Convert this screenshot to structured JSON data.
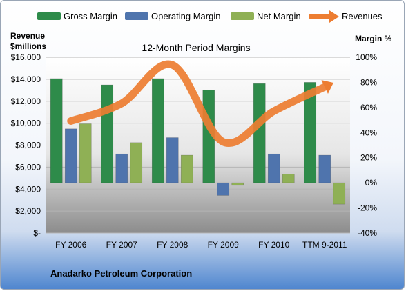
{
  "chart_data": {
    "type": "bar",
    "title": "12-Month Period Margins",
    "categories": [
      "FY 2006",
      "FY 2007",
      "FY 2008",
      "FY 2009",
      "FY 2010",
      "TTM 9-2011"
    ],
    "series": [
      {
        "name": "Gross Margin",
        "axis": "right",
        "unit": "%",
        "color": "#2e8b4a",
        "values": [
          83,
          78,
          83,
          74,
          79,
          80
        ]
      },
      {
        "name": "Operating Margin",
        "axis": "right",
        "unit": "%",
        "color": "#4f74ad",
        "values": [
          43,
          23,
          36,
          -10,
          23,
          22
        ]
      },
      {
        "name": "Net Margin",
        "axis": "right",
        "unit": "%",
        "color": "#8fb055",
        "values": [
          47,
          32,
          22,
          -2,
          7,
          -17
        ]
      },
      {
        "name": "Revenues",
        "axis": "left",
        "type": "line",
        "unit": "$millions",
        "color": "#ed7d31",
        "values": [
          10200,
          11800,
          15300,
          8300,
          11100,
          13300
        ]
      }
    ],
    "y_left": {
      "label_line1": "Revenue",
      "label_line2": "$millions",
      "range": [
        0,
        16000
      ],
      "ticks": [
        "$-",
        "$2,000",
        "$4,000",
        "$6,000",
        "$8,000",
        "$10,000",
        "$12,000",
        "$14,000",
        "$16,000"
      ]
    },
    "y_right": {
      "label": "Margin %",
      "range": [
        -40,
        100
      ],
      "ticks": [
        "-40%",
        "-20%",
        "0%",
        "20%",
        "40%",
        "60%",
        "80%",
        "100%"
      ]
    },
    "legend_position": "top",
    "grid": true
  },
  "footer": {
    "company": "Anadarko Petroleum Corporation"
  }
}
